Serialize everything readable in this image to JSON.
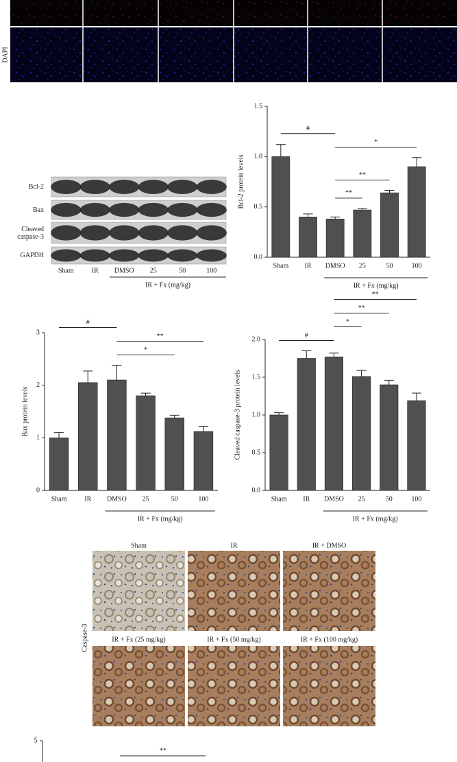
{
  "fluorescence": {
    "stain": "DAPI"
  },
  "blot": {
    "rows": [
      "Bcl-2",
      "Bax",
      "Cleaved caspase-3",
      "GAPDH"
    ],
    "lanes": [
      "Sham",
      "IR",
      "DMSO",
      "25",
      "50",
      "100"
    ],
    "group_label": "IR + Fx (mg/kg)"
  },
  "chart_data": [
    {
      "type": "bar",
      "y_label": "Bcl-2 protein levels",
      "categories": [
        "Sham",
        "IR",
        "DMSO",
        "25",
        "50",
        "100"
      ],
      "values": [
        1.0,
        0.4,
        0.38,
        0.47,
        0.64,
        0.9
      ],
      "errors": [
        0.12,
        0.03,
        0.02,
        0.015,
        0.025,
        0.09
      ],
      "color": "#505050",
      "ylim": [
        0,
        1.5
      ],
      "yticks": [
        {
          "value": 0,
          "label": "0.0"
        },
        {
          "value": 0.5,
          "label": "0.5"
        },
        {
          "value": 1,
          "label": "1.0"
        },
        {
          "value": 1.5,
          "label": "1.5"
        }
      ],
      "group_label": "IR + Fx (mg/kg)",
      "group_span": [
        "DMSO",
        "100"
      ],
      "annotations": [
        {
          "label": "#",
          "between": [
            "Sham",
            "DMSO"
          ]
        },
        {
          "label": "*",
          "between": [
            "DMSO",
            "100"
          ]
        },
        {
          "label": "**",
          "between": [
            "DMSO",
            "50"
          ]
        },
        {
          "label": "**",
          "between": [
            "DMSO",
            "25"
          ]
        }
      ]
    },
    {
      "type": "bar",
      "y_label": "Bax protein levels",
      "categories": [
        "Sham",
        "IR",
        "DMSO",
        "25",
        "50",
        "100"
      ],
      "values": [
        1.0,
        2.05,
        2.1,
        1.8,
        1.38,
        1.12
      ],
      "errors": [
        0.1,
        0.22,
        0.28,
        0.05,
        0.05,
        0.1
      ],
      "color": "#505050",
      "ylim": [
        0,
        3
      ],
      "yticks": [
        0,
        1,
        2,
        3
      ],
      "group_label": "IR + Fx (mg/kg)",
      "group_span": [
        "DMSO",
        "100"
      ],
      "annotations": [
        {
          "label": "#",
          "between": [
            "Sham",
            "DMSO"
          ]
        },
        {
          "label": "**",
          "between": [
            "DMSO",
            "100"
          ]
        },
        {
          "label": "*",
          "between": [
            "DMSO",
            "50"
          ]
        }
      ]
    },
    {
      "type": "bar",
      "y_label": "Cleaved caspase-3 protein levels",
      "categories": [
        "Sham",
        "IR",
        "DMSO",
        "25",
        "50",
        "100"
      ],
      "values": [
        1.0,
        1.75,
        1.77,
        1.51,
        1.4,
        1.19
      ],
      "errors": [
        0.03,
        0.1,
        0.05,
        0.08,
        0.06,
        0.1
      ],
      "color": "#505050",
      "ylim": [
        0,
        2
      ],
      "yticks": [
        {
          "value": 0,
          "label": "0.0"
        },
        {
          "value": 0.5,
          "label": "0.5"
        },
        {
          "value": 1,
          "label": "1.0"
        },
        {
          "value": 1.5,
          "label": "1.5"
        },
        {
          "value": 2,
          "label": "2.0"
        }
      ],
      "group_label": "IR + Fx (mg/kg)",
      "group_span": [
        "DMSO",
        "100"
      ],
      "annotations": [
        {
          "label": "**",
          "between": [
            "DMSO",
            "100"
          ]
        },
        {
          "label": "**",
          "between": [
            "DMSO",
            "50"
          ]
        },
        {
          "label": "*",
          "between": [
            "DMSO",
            "25"
          ]
        },
        {
          "label": "#",
          "between": [
            "Sham",
            "DMSO"
          ]
        }
      ]
    }
  ],
  "ihc": {
    "stain": "Caspase-3",
    "panels": [
      "Sham",
      "IR",
      "IR + DMSO",
      "IR + Fx (25 mg/kg)",
      "IR + Fx (50 mg/kg)",
      "IR + Fx (100 mg/kg)"
    ]
  },
  "cropped_panel": {
    "tick_label": "5",
    "annotation": "**"
  }
}
